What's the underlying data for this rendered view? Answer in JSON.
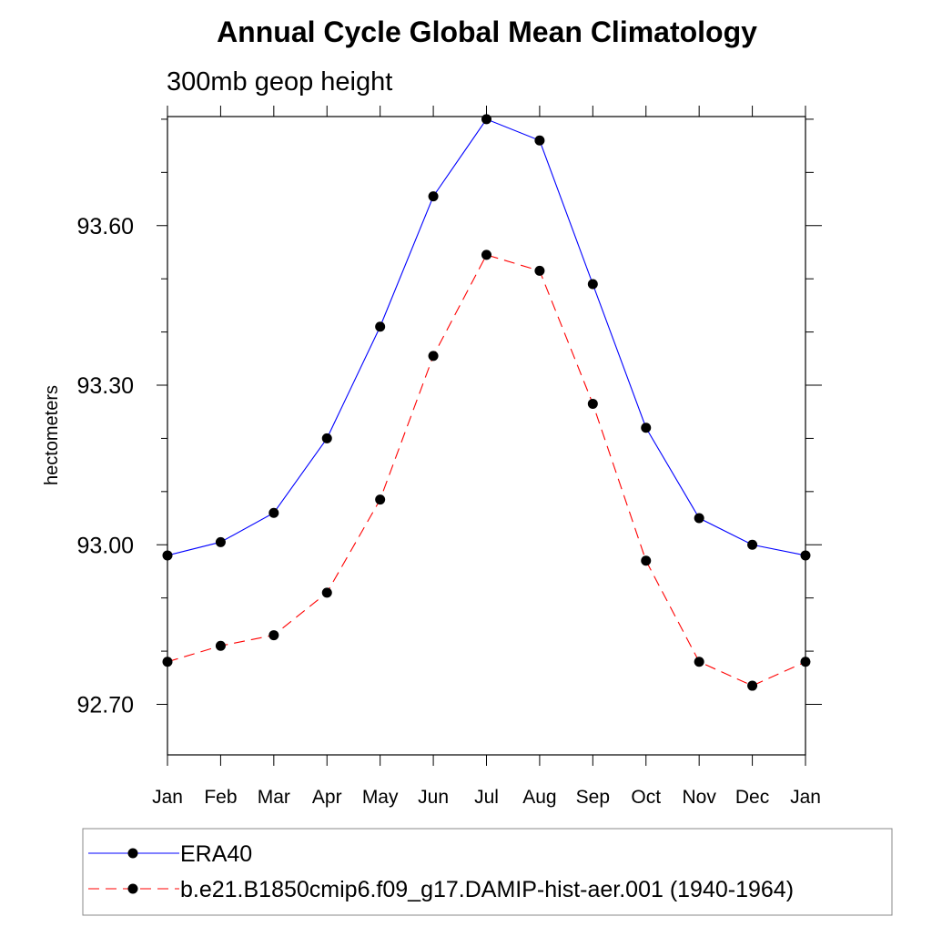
{
  "chart_data": {
    "type": "line",
    "title": "Annual Cycle Global Mean Climatology",
    "subtitle": "300mb geop height",
    "xlabel": "",
    "ylabel": "hectometers",
    "categories": [
      "Jan",
      "Feb",
      "Mar",
      "Apr",
      "May",
      "Jun",
      "Jul",
      "Aug",
      "Sep",
      "Oct",
      "Nov",
      "Dec",
      "Jan"
    ],
    "ylim": [
      92.605,
      93.805
    ],
    "yticks": [
      92.7,
      93.0,
      93.3,
      93.6
    ],
    "ytick_labels": [
      "92.70",
      "93.00",
      "93.30",
      "93.60"
    ],
    "yminor_step": 0.1,
    "grid": false,
    "legend_position": "bottom",
    "series": [
      {
        "name": "ERA40",
        "color": "#0000ff",
        "dash": "solid",
        "marker": "filled-circle",
        "values": [
          92.98,
          93.005,
          93.06,
          93.2,
          93.41,
          93.655,
          93.8,
          93.76,
          93.49,
          93.22,
          93.05,
          93.0,
          92.98
        ]
      },
      {
        "name": "b.e21.B1850cmip6.f09_g17.DAMIP-hist-aer.001 (1940-1964)",
        "color": "#ff0000",
        "dash": "dashed",
        "marker": "filled-circle",
        "values": [
          92.78,
          92.81,
          92.83,
          92.91,
          93.085,
          93.355,
          93.545,
          93.515,
          93.265,
          92.97,
          92.78,
          92.735,
          92.78
        ]
      }
    ]
  }
}
